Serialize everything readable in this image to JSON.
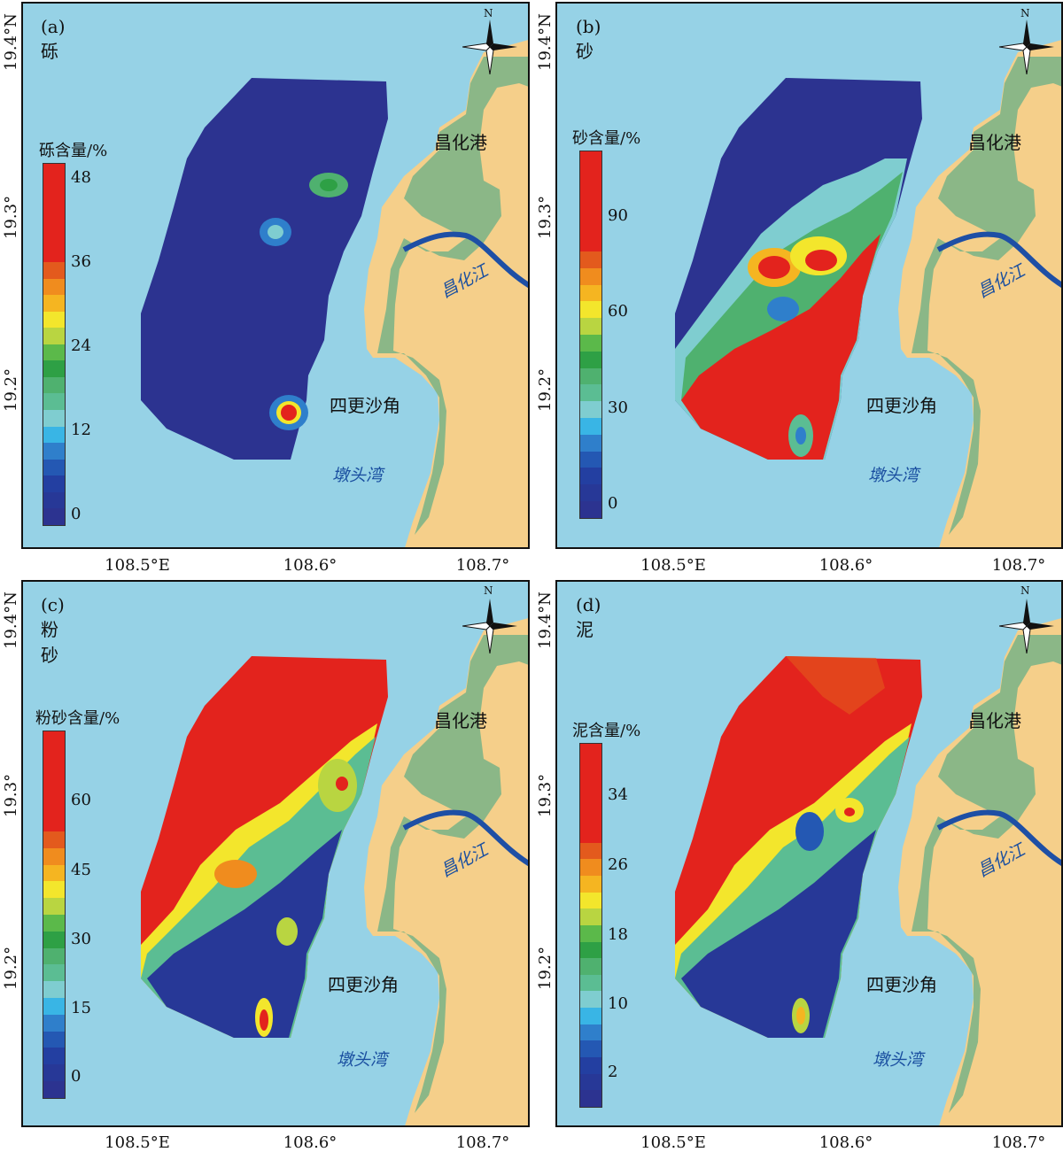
{
  "labels": {
    "place_port": "昌化港",
    "place_cape": "四更沙角",
    "bay": "墩头湾",
    "river": "昌化江",
    "north": "N"
  },
  "x_ticks": [
    "108.5°E",
    "108.6°",
    "108.7°"
  ],
  "y_ticks": [
    "19.4°N",
    "19.3°",
    "19.2°"
  ],
  "panels": [
    {
      "title": "(a)砾",
      "legend_title": "砾含量/%",
      "legend_ticks": [
        "48",
        "36",
        "24",
        "12",
        "0"
      ],
      "colors": [
        "#e3231d",
        "#e3231d",
        "#e3231d",
        "#e3231d",
        "#e3231d",
        "#e3231d",
        "#e35a1d",
        "#f08c1e",
        "#f5b521",
        "#f3e62c",
        "#b9d541",
        "#5bb94a",
        "#2ea045",
        "#4fb16f",
        "#5bbd93",
        "#7fcdd0",
        "#39b5e5",
        "#2f7fcb",
        "#2458b3",
        "#233fa1",
        "#273897",
        "#2c3390"
      ]
    },
    {
      "title": "(b)砂",
      "legend_title": "砂含量/%",
      "legend_ticks": [
        "90",
        "60",
        "30",
        "0"
      ],
      "colors": [
        "#e3231d",
        "#e3231d",
        "#e3231d",
        "#e3231d",
        "#e3231d",
        "#e3231d",
        "#e35a1d",
        "#f08c1e",
        "#f5b521",
        "#f3e62c",
        "#b9d541",
        "#5bb94a",
        "#2ea045",
        "#4fb16f",
        "#5bbd93",
        "#7fcdd0",
        "#39b5e5",
        "#2f7fcb",
        "#2458b3",
        "#233fa1",
        "#273897",
        "#2c3390"
      ]
    },
    {
      "title": "(c)粉砂",
      "legend_title": "粉砂含量/%",
      "legend_ticks": [
        "60",
        "45",
        "30",
        "15",
        "0"
      ],
      "colors": [
        "#e3231d",
        "#e3231d",
        "#e3231d",
        "#e3231d",
        "#e3231d",
        "#e3231d",
        "#e35a1d",
        "#f08c1e",
        "#f5b521",
        "#f3e62c",
        "#b9d541",
        "#5bb94a",
        "#2ea045",
        "#4fb16f",
        "#5bbd93",
        "#7fcdd0",
        "#39b5e5",
        "#2f7fcb",
        "#2458b3",
        "#233fa1",
        "#273897",
        "#2c3390"
      ]
    },
    {
      "title": "(d)泥",
      "legend_title": "泥含量/%",
      "legend_ticks": [
        "34",
        "26",
        "18",
        "10",
        "2"
      ],
      "colors": [
        "#e3231d",
        "#e3231d",
        "#e3231d",
        "#e3231d",
        "#e3231d",
        "#e3231d",
        "#e35a1d",
        "#f08c1e",
        "#f5b521",
        "#f3e62c",
        "#b9d541",
        "#5bb94a",
        "#2ea045",
        "#4fb16f",
        "#5bbd93",
        "#7fcdd0",
        "#39b5e5",
        "#2f7fcb",
        "#2458b3",
        "#233fa1",
        "#273897",
        "#2c3390"
      ]
    }
  ],
  "style_colors": {
    "sea": "#96d2e6",
    "land": "#f5cf8a",
    "tidal_flat": "#7fb486",
    "river": "#1e4fa5",
    "survey_low": "#2c3390",
    "survey_high": "#e3231d"
  }
}
